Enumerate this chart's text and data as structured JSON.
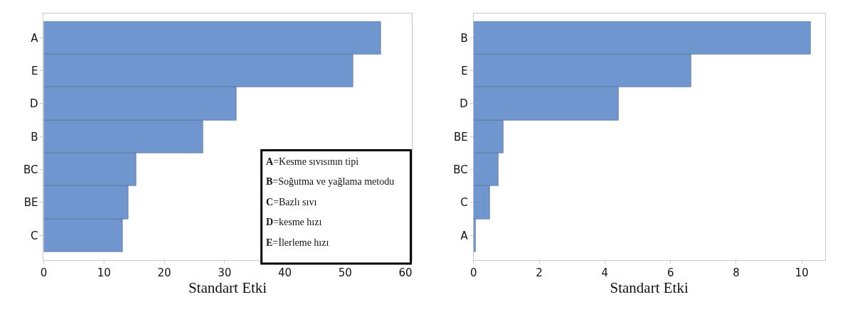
{
  "chart_data": [
    {
      "type": "bar",
      "orientation": "horizontal",
      "xlabel": "Standart Etki",
      "categories": [
        "A",
        "E",
        "D",
        "B",
        "BC",
        "BE",
        "C"
      ],
      "values": [
        55.9,
        51.3,
        32.0,
        26.4,
        15.3,
        14.0,
        13.1
      ],
      "color": "#7096cf",
      "xlim": [
        0,
        61
      ],
      "xticks": [
        0,
        10,
        20,
        30,
        40,
        50,
        60
      ],
      "annotations": [
        "A=Kesme sıvısının tipi",
        "B=Soğutma ve yağlama metodu",
        "C=Bazlı sıvı",
        "D=kesme hızı",
        "E=İlerleme hızı"
      ]
    },
    {
      "type": "bar",
      "orientation": "horizontal",
      "xlabel": "Standart Etki",
      "categories": [
        "B",
        "E",
        "D",
        "BE",
        "BC",
        "C",
        "A"
      ],
      "values": [
        10.27,
        6.63,
        4.43,
        0.91,
        0.76,
        0.49,
        0.07
      ],
      "color": "#7096cf",
      "xlim": [
        0,
        10.7
      ],
      "xticks": [
        0,
        2,
        4,
        6,
        8,
        10
      ]
    }
  ]
}
